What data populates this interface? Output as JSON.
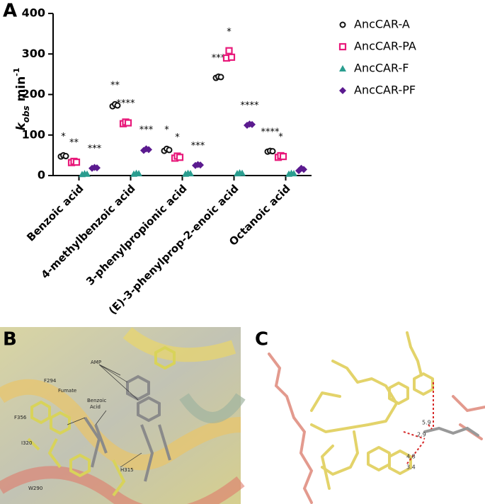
{
  "chart_data": {
    "type": "dot",
    "panel_label": "A",
    "y_label": {
      "main": "k",
      "sub": "obs",
      "unit": " min",
      "sup": "-1"
    },
    "categories": [
      "Benzoic acid",
      "4-methylbenzoic acid",
      "3-phenylpropionic acid",
      "(E)-3-phenylprop-2-enoic acid",
      "Octanoic acid"
    ],
    "ylim": [
      0,
      400
    ],
    "yticks": [
      0,
      100,
      200,
      300,
      400
    ],
    "series": [
      {
        "name": "AncCAR-A",
        "color": "#111111",
        "marker": "circle",
        "values": [
          [
            47,
            50,
            48
          ],
          [
            171,
            176,
            173
          ],
          [
            61,
            66,
            63
          ],
          [
            241,
            244,
            243
          ],
          [
            59,
            61,
            60
          ]
        ],
        "stars": [
          "*",
          "**",
          "*",
          "***",
          "****"
        ]
      },
      {
        "name": "AncCAR-PA",
        "color": "#e8197a",
        "marker": "square",
        "values": [
          [
            32,
            35,
            33
          ],
          [
            128,
            132,
            130
          ],
          [
            43,
            48,
            45
          ],
          [
            290,
            308,
            292
          ],
          [
            45,
            49,
            47
          ]
        ],
        "stars": [
          "**",
          "****",
          "*",
          "*",
          "*"
        ]
      },
      {
        "name": "AncCAR-F",
        "color": "#2a9d8f",
        "marker": "triangle",
        "values": [
          [
            3,
            5,
            4
          ],
          [
            4,
            6,
            5
          ],
          [
            4,
            6,
            5
          ],
          [
            5,
            7,
            6
          ],
          [
            4,
            6,
            5
          ]
        ]
      },
      {
        "name": "AncCAR-PF",
        "color": "#5b1a8f",
        "marker": "diamond",
        "values": [
          [
            18,
            20,
            19
          ],
          [
            62,
            66,
            64
          ],
          [
            25,
            27,
            26
          ],
          [
            124,
            127,
            126
          ],
          [
            12,
            18,
            15
          ]
        ],
        "stars": [
          "***",
          "***",
          "***",
          "****",
          null
        ]
      }
    ]
  },
  "panel_b": {
    "panel_label": "B",
    "labels": [
      "AMP",
      "Fumate",
      "Benzoic",
      "Acid",
      "F294",
      "F356",
      "I320",
      "W290",
      "H315"
    ]
  },
  "panel_c": {
    "panel_label": "C",
    "labels": [
      "5.9",
      "2.9",
      "4.8",
      "3.4"
    ]
  }
}
